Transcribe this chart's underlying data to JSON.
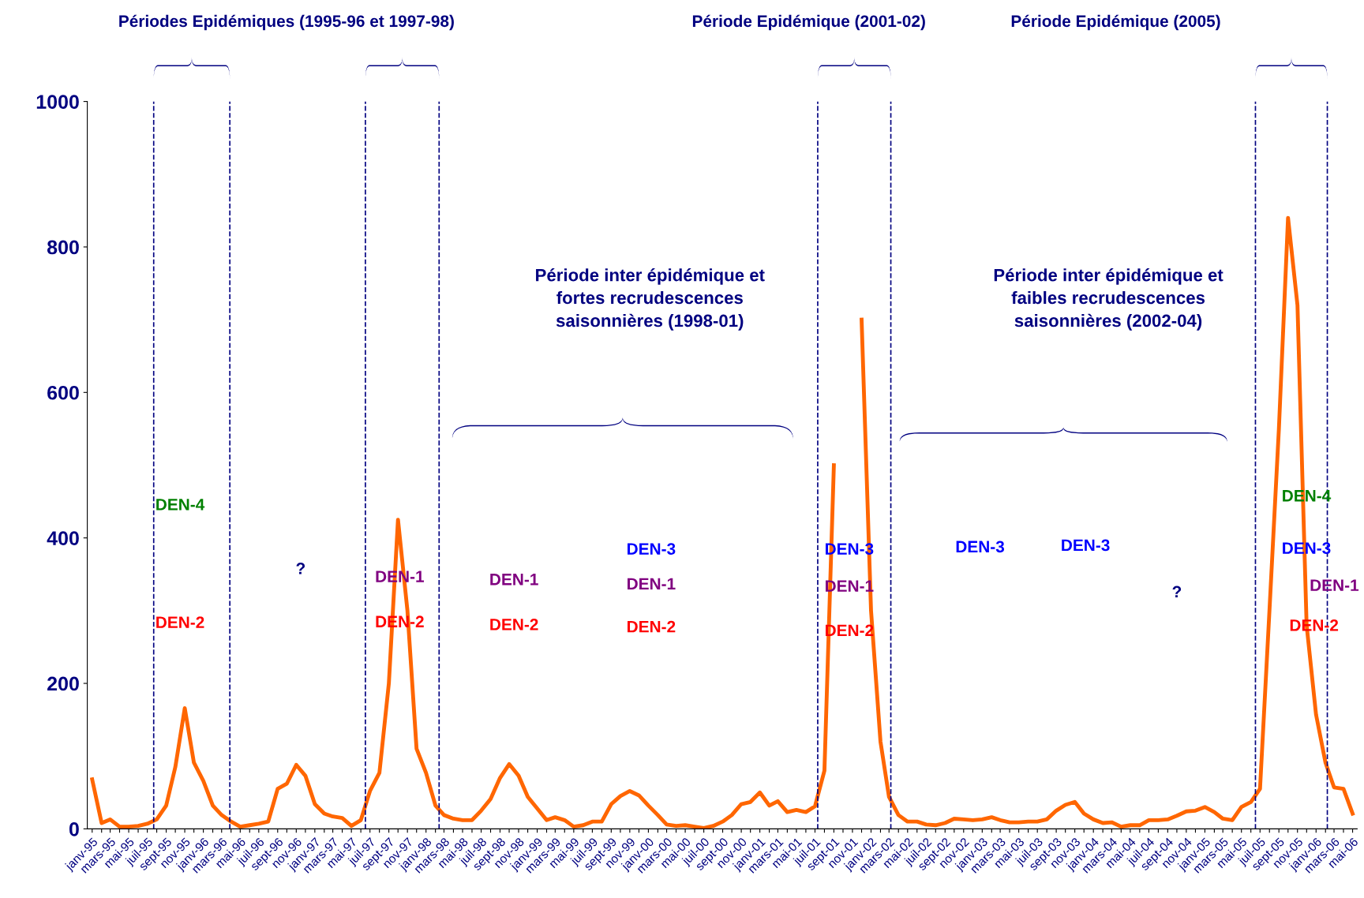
{
  "chart_data": {
    "type": "line",
    "x": [
      "1995-01",
      "1995-02",
      "1995-03",
      "1995-04",
      "1995-05",
      "1995-06",
      "1995-07",
      "1995-08",
      "1995-09",
      "1995-10",
      "1995-11",
      "1995-12",
      "1996-01",
      "1996-02",
      "1996-03",
      "1996-04",
      "1996-05",
      "1996-06",
      "1996-07",
      "1996-08",
      "1996-09",
      "1996-10",
      "1996-11",
      "1996-12",
      "1997-01",
      "1997-02",
      "1997-03",
      "1997-04",
      "1997-05",
      "1997-06",
      "1997-07",
      "1997-08",
      "1997-09",
      "1997-10",
      "1997-11",
      "1997-12",
      "1998-01",
      "1998-02",
      "1998-03",
      "1998-04",
      "1998-05",
      "1998-06",
      "1998-07",
      "1998-08",
      "1998-09",
      "1998-10",
      "1998-11",
      "1998-12",
      "1999-01",
      "1999-02",
      "1999-03",
      "1999-04",
      "1999-05",
      "1999-06",
      "1999-07",
      "1999-08",
      "1999-09",
      "1999-10",
      "1999-11",
      "1999-12",
      "2000-01",
      "2000-02",
      "2000-03",
      "2000-04",
      "2000-05",
      "2000-06",
      "2000-07",
      "2000-08",
      "2000-09",
      "2000-10",
      "2000-11",
      "2000-12",
      "2001-01",
      "2001-02",
      "2001-03",
      "2001-04",
      "2001-05",
      "2001-06",
      "2001-07",
      "2001-08",
      "2001-09",
      "2001-10",
      "2001-11",
      "2001-12",
      "2002-01",
      "2002-02",
      "2002-03",
      "2002-04",
      "2002-05",
      "2002-06",
      "2002-07",
      "2002-08",
      "2002-09",
      "2002-10",
      "2002-11",
      "2002-12",
      "2003-01",
      "2003-02",
      "2003-03",
      "2003-04",
      "2003-05",
      "2003-06",
      "2003-07",
      "2003-08",
      "2003-09",
      "2003-10",
      "2003-11",
      "2003-12",
      "2004-01",
      "2004-02",
      "2004-03",
      "2004-04",
      "2004-05",
      "2004-06",
      "2004-07",
      "2004-08",
      "2004-09",
      "2004-10",
      "2004-11",
      "2004-12",
      "2005-01",
      "2005-02",
      "2005-03",
      "2005-04",
      "2005-05",
      "2005-06",
      "2005-07",
      "2005-08",
      "2005-09",
      "2005-10",
      "2005-11",
      "2005-12",
      "2006-01",
      "2006-02",
      "2006-03",
      "2006-04",
      "2006-05"
    ],
    "series": [
      {
        "color": "#ff6600",
        "values": [
          68,
          8,
          13,
          3,
          3,
          4,
          7,
          13,
          32,
          85,
          166,
          91,
          66,
          32,
          19,
          10,
          3,
          5,
          7,
          10,
          55,
          62,
          88,
          73,
          34,
          21,
          17,
          15,
          4,
          12,
          52,
          77,
          200,
          425,
          300,
          110,
          77,
          32,
          19,
          14,
          12,
          12,
          25,
          41,
          70,
          89,
          73,
          44,
          28,
          12,
          16,
          12,
          3,
          5,
          10,
          10,
          34,
          45,
          52,
          46,
          32,
          19,
          6,
          4,
          5,
          3,
          1,
          4,
          10,
          19,
          34,
          37,
          50,
          32,
          38,
          23,
          26,
          23,
          31,
          80,
          500,
          null,
          null,
          700,
          300,
          120,
          44,
          19,
          10,
          10,
          6,
          5,
          8,
          14,
          13,
          12,
          13,
          16,
          12,
          9,
          9,
          10,
          10,
          13,
          25,
          33,
          37,
          21,
          13,
          8,
          9,
          3,
          5,
          5,
          12,
          12,
          13,
          18,
          24,
          25,
          30,
          23,
          14,
          12,
          30,
          37,
          55,
          300,
          550,
          840,
          720,
          280,
          157,
          91,
          57,
          55,
          21
        ]
      }
    ],
    "xlim": [
      "1994-12-16",
      "2006-05-16"
    ],
    "xticks": [
      {
        "value": "1995-01",
        "label": "janv-95"
      },
      {
        "value": "1995-02",
        "label": null
      },
      {
        "value": "1995-03",
        "label": "mars-95"
      },
      {
        "value": "1995-04",
        "label": null
      },
      {
        "value": "1995-05",
        "label": "mai-95"
      },
      {
        "value": "1995-06",
        "label": null
      },
      {
        "value": "1995-07",
        "label": "juil-95"
      },
      {
        "value": "1995-08",
        "label": null
      },
      {
        "value": "1995-09",
        "label": "sept-95"
      },
      {
        "value": "1995-10",
        "label": null
      },
      {
        "value": "1995-11",
        "label": "nov-95"
      },
      {
        "value": "1995-12",
        "label": null
      },
      {
        "value": "1996-01",
        "label": "janv-96"
      },
      {
        "value": "1996-02",
        "label": null
      },
      {
        "value": "1996-03",
        "label": "mars-96"
      },
      {
        "value": "1996-04",
        "label": null
      },
      {
        "value": "1996-05",
        "label": "mai-96"
      },
      {
        "value": "1996-06",
        "label": null
      },
      {
        "value": "1996-07",
        "label": "juil-96"
      },
      {
        "value": "1996-08",
        "label": null
      },
      {
        "value": "1996-09",
        "label": "sept-96"
      },
      {
        "value": "1996-10",
        "label": null
      },
      {
        "value": "1996-11",
        "label": "nov-96"
      },
      {
        "value": "1996-12",
        "label": null
      },
      {
        "value": "1997-01",
        "label": "janv-97"
      },
      {
        "value": "1997-02",
        "label": null
      },
      {
        "value": "1997-03",
        "label": "mars-97"
      },
      {
        "value": "1997-04",
        "label": null
      },
      {
        "value": "1997-05",
        "label": "mai-97"
      },
      {
        "value": "1997-06",
        "label": null
      },
      {
        "value": "1997-07",
        "label": "juil-97"
      },
      {
        "value": "1997-08",
        "label": null
      },
      {
        "value": "1997-09",
        "label": "sept-97"
      },
      {
        "value": "1997-10",
        "label": null
      },
      {
        "value": "1997-11",
        "label": "nov-97"
      },
      {
        "value": "1997-12",
        "label": null
      },
      {
        "value": "1998-01",
        "label": "janv-98"
      },
      {
        "value": "1998-02",
        "label": null
      },
      {
        "value": "1998-03",
        "label": "mars-98"
      },
      {
        "value": "1998-04",
        "label": null
      },
      {
        "value": "1998-05",
        "label": "mai-98"
      },
      {
        "value": "1998-06",
        "label": null
      },
      {
        "value": "1998-07",
        "label": "juil-98"
      },
      {
        "value": "1998-08",
        "label": null
      },
      {
        "value": "1998-09",
        "label": "sept-98"
      },
      {
        "value": "1998-10",
        "label": null
      },
      {
        "value": "1998-11",
        "label": "nov-98"
      },
      {
        "value": "1998-12",
        "label": null
      },
      {
        "value": "1999-01",
        "label": "janv-99"
      },
      {
        "value": "1999-02",
        "label": null
      },
      {
        "value": "1999-03",
        "label": "mars-99"
      },
      {
        "value": "1999-04",
        "label": null
      },
      {
        "value": "1999-05",
        "label": "mai-99"
      },
      {
        "value": "1999-06",
        "label": null
      },
      {
        "value": "1999-07",
        "label": "juil-99"
      },
      {
        "value": "1999-08",
        "label": null
      },
      {
        "value": "1999-09",
        "label": "sept-99"
      },
      {
        "value": "1999-10",
        "label": null
      },
      {
        "value": "1999-11",
        "label": "nov-99"
      },
      {
        "value": "1999-12",
        "label": null
      },
      {
        "value": "2000-01",
        "label": "janv-00"
      },
      {
        "value": "2000-02",
        "label": null
      },
      {
        "value": "2000-03",
        "label": "mars-00"
      },
      {
        "value": "2000-04",
        "label": null
      },
      {
        "value": "2000-05",
        "label": "mai-00"
      },
      {
        "value": "2000-06",
        "label": null
      },
      {
        "value": "2000-07",
        "label": "juil-00"
      },
      {
        "value": "2000-08",
        "label": null
      },
      {
        "value": "2000-09",
        "label": "sept-00"
      },
      {
        "value": "2000-10",
        "label": null
      },
      {
        "value": "2000-11",
        "label": "nov-00"
      },
      {
        "value": "2000-12",
        "label": null
      },
      {
        "value": "2001-01",
        "label": "janv-01"
      },
      {
        "value": "2001-02",
        "label": null
      },
      {
        "value": "2001-03",
        "label": "mars-01"
      },
      {
        "value": "2001-04",
        "label": null
      },
      {
        "value": "2001-05",
        "label": "mai-01"
      },
      {
        "value": "2001-06",
        "label": null
      },
      {
        "value": "2001-07",
        "label": "juil-01"
      },
      {
        "value": "2001-08",
        "label": null
      },
      {
        "value": "2001-09",
        "label": "sept-01"
      },
      {
        "value": "2001-10",
        "label": null
      },
      {
        "value": "2001-11",
        "label": "nov-01"
      },
      {
        "value": "2001-12",
        "label": null
      },
      {
        "value": "2002-01",
        "label": "janv-02"
      },
      {
        "value": "2002-02",
        "label": null
      },
      {
        "value": "2002-03",
        "label": "mars-02"
      },
      {
        "value": "2002-04",
        "label": null
      },
      {
        "value": "2002-05",
        "label": "mai-02"
      },
      {
        "value": "2002-06",
        "label": null
      },
      {
        "value": "2002-07",
        "label": "juil-02"
      },
      {
        "value": "2002-08",
        "label": null
      },
      {
        "value": "2002-09",
        "label": "sept-02"
      },
      {
        "value": "2002-10",
        "label": null
      },
      {
        "value": "2002-11",
        "label": "nov-02"
      },
      {
        "value": "2002-12",
        "label": null
      },
      {
        "value": "2003-01",
        "label": "janv-03"
      },
      {
        "value": "2003-02",
        "label": null
      },
      {
        "value": "2003-03",
        "label": "mars-03"
      },
      {
        "value": "2003-04",
        "label": null
      },
      {
        "value": "2003-05",
        "label": "mai-03"
      },
      {
        "value": "2003-06",
        "label": null
      },
      {
        "value": "2003-07",
        "label": "juil-03"
      },
      {
        "value": "2003-08",
        "label": null
      },
      {
        "value": "2003-09",
        "label": "sept-03"
      },
      {
        "value": "2003-10",
        "label": null
      },
      {
        "value": "2003-11",
        "label": "nov-03"
      },
      {
        "value": "2003-12",
        "label": null
      },
      {
        "value": "2004-01",
        "label": "janv-04"
      },
      {
        "value": "2004-02",
        "label": null
      },
      {
        "value": "2004-03",
        "label": "mars-04"
      },
      {
        "value": "2004-04",
        "label": null
      },
      {
        "value": "2004-05",
        "label": "mai-04"
      },
      {
        "value": "2004-06",
        "label": null
      },
      {
        "value": "2004-07",
        "label": "juil-04"
      },
      {
        "value": "2004-08",
        "label": null
      },
      {
        "value": "2004-09",
        "label": "sept-04"
      },
      {
        "value": "2004-10",
        "label": null
      },
      {
        "value": "2004-11",
        "label": "nov-04"
      },
      {
        "value": "2004-12",
        "label": null
      },
      {
        "value": "2005-01",
        "label": "janv-05"
      },
      {
        "value": "2005-02",
        "label": null
      },
      {
        "value": "2005-03",
        "label": "mars-05"
      },
      {
        "value": "2005-04",
        "label": null
      },
      {
        "value": "2005-05",
        "label": "mai-05"
      },
      {
        "value": "2005-06",
        "label": null
      },
      {
        "value": "2005-07",
        "label": "juil-05"
      },
      {
        "value": "2005-08",
        "label": null
      },
      {
        "value": "2005-09",
        "label": "sept-05"
      },
      {
        "value": "2005-10",
        "label": null
      },
      {
        "value": "2005-11",
        "label": "nov-05"
      },
      {
        "value": "2005-12",
        "label": null
      },
      {
        "value": "2006-01",
        "label": "janv-06"
      },
      {
        "value": "2006-02",
        "label": null
      },
      {
        "value": "2006-03",
        "label": "mars-06"
      },
      {
        "value": "2006-04",
        "label": null
      },
      {
        "value": "2006-05",
        "label": "mai-06"
      }
    ],
    "ylim": [
      0,
      1000
    ],
    "yticks": [
      0,
      200,
      400,
      600,
      800,
      1000
    ],
    "grid": false,
    "legend": false,
    "marker": "none",
    "line_style": "solid",
    "ref_lines": [
      {
        "axis": "x",
        "value": "1995-07-22",
        "color": "#000080",
        "line_style": "dashed"
      },
      {
        "axis": "x",
        "value": "1996-03-28",
        "color": "#000080",
        "line_style": "dashed"
      },
      {
        "axis": "x",
        "value": "1997-06-16",
        "color": "#000080",
        "line_style": "dashed"
      },
      {
        "axis": "x",
        "value": "1998-02-13",
        "color": "#000080",
        "line_style": "dashed"
      },
      {
        "axis": "x",
        "value": "2001-07-10",
        "color": "#000080",
        "line_style": "dashed"
      },
      {
        "axis": "x",
        "value": "2002-03-07",
        "color": "#000080",
        "line_style": "dashed"
      },
      {
        "axis": "x",
        "value": "2005-06-16",
        "color": "#000080",
        "line_style": "dashed"
      },
      {
        "axis": "x",
        "value": "2006-02-07",
        "color": "#000080",
        "line_style": "dashed"
      }
    ],
    "annotations": [
      "Périodes Epidémiques (1995-96 et 1997-98)",
      "Période Epidémique (2001-02)",
      "Période Epidémique (2005)",
      "Période inter épidémique et\nfortes recrudescences\nsaisonnières (1998-01)",
      "Période inter épidémique et\nfaibles recrudescences\nsaisonnières (2002-04)",
      "DEN-4",
      "DEN-2",
      "?",
      "DEN-1",
      "DEN-2",
      "DEN-1",
      "DEN-2",
      "DEN-3",
      "DEN-1",
      "DEN-2",
      "DEN-3",
      "DEN-1",
      "DEN-2",
      "DEN-3",
      "DEN-3",
      "?",
      "DEN-4",
      "DEN-3",
      "DEN-1",
      "DEN-2"
    ]
  }
}
